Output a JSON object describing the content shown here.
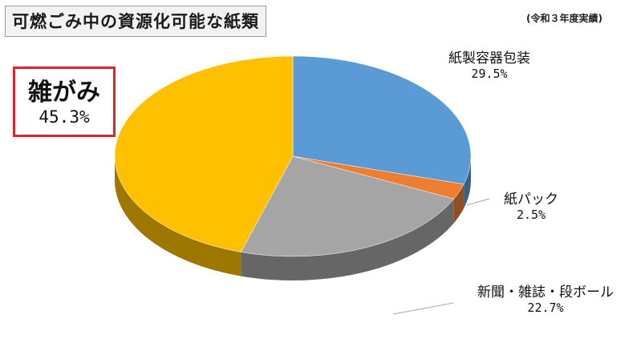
{
  "title": "可燃ごみ中の資源化可能な紙類",
  "subtitle": "(令和３年度実績)",
  "chart_data": {
    "type": "pie",
    "title": "可燃ごみ中の資源化可能な紙類",
    "subtitle": "(令和３年度実績)",
    "slices": [
      {
        "label": "紙製容器包装",
        "value": 29.5,
        "value_label": "29.5%",
        "color": "#5b9bd5"
      },
      {
        "label": "紙パック",
        "value": 2.5,
        "value_label": "2.5%",
        "color": "#ed7d31"
      },
      {
        "label": "新聞・雑誌・段ボール",
        "value": 22.7,
        "value_label": "22.7%",
        "color": "#a5a5a5"
      },
      {
        "label": "雑がみ",
        "value": 45.3,
        "value_label": "45.3%",
        "color": "#ffc000"
      }
    ],
    "highlight": "雑がみ",
    "style": "3d"
  }
}
